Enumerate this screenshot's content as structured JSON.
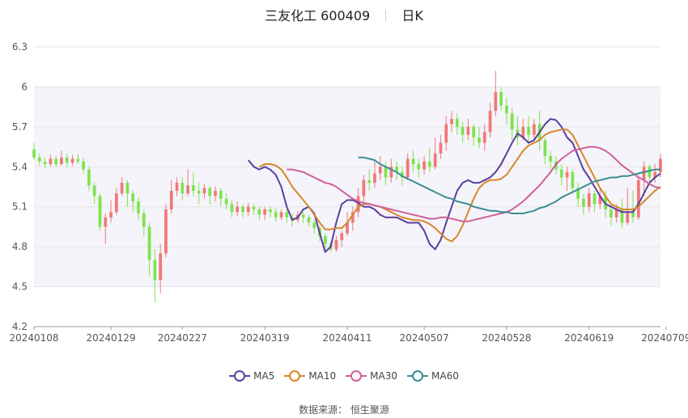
{
  "title": {
    "name": "三友化工 600409",
    "period": "日K"
  },
  "source": "数据来源：  恒生聚源",
  "chart_data": {
    "type": "candlestick",
    "ylim": [
      4.2,
      6.3
    ],
    "y_ticks": [
      4.2,
      4.5,
      4.8,
      5.1,
      5.4,
      5.7,
      6.0,
      6.3
    ],
    "y_tick_labels": [
      "4.2",
      "4.5",
      "4.8",
      "5.1",
      "5.4",
      "5.7",
      "6",
      "6.3"
    ],
    "x_ticks": [
      {
        "label": "20240108",
        "index": 0
      },
      {
        "label": "20240129",
        "index": 14
      },
      {
        "label": "20240227",
        "index": 27
      },
      {
        "label": "20240319",
        "index": 42
      },
      {
        "label": "20240411",
        "index": 57
      },
      {
        "label": "20240507",
        "index": 71
      },
      {
        "label": "20240528",
        "index": 86
      },
      {
        "label": "20240619",
        "index": 101
      },
      {
        "label": "20240709",
        "index": 115
      }
    ],
    "grid": true,
    "legend_position": "bottom",
    "colors": {
      "up": "#f07878",
      "down": "#7ee34e",
      "plot_band": "#f4f4fa"
    },
    "series": [
      {
        "name": "MA5",
        "color": "#5a3f9b",
        "values": [
          5.45,
          5.4,
          5.38,
          5.4,
          5.38,
          5.34,
          5.25,
          5.1,
          5.0,
          5.02,
          5.08,
          5.1,
          5.05,
          4.9,
          4.76,
          4.8,
          4.98,
          5.12,
          5.15,
          5.15,
          5.13,
          5.1,
          5.1,
          5.08,
          5.04,
          5.02,
          5.02,
          5.02,
          5.0,
          4.98,
          4.98,
          4.98,
          4.92,
          4.82,
          4.78,
          4.85,
          4.98,
          5.1,
          5.22,
          5.28,
          5.3,
          5.28,
          5.28,
          5.3,
          5.32,
          5.36,
          5.42,
          5.5,
          5.58,
          5.65,
          5.62,
          5.58,
          5.6,
          5.66,
          5.72,
          5.76,
          5.75,
          5.7,
          5.62,
          5.58,
          5.48,
          5.38,
          5.32,
          5.25,
          5.18,
          5.12,
          5.1,
          5.08,
          5.06,
          5.06,
          5.06,
          5.12,
          5.2,
          5.28,
          5.32,
          5.35
        ]
      },
      {
        "name": "MA10",
        "color": "#d9862a",
        "values": [
          5.4,
          5.42,
          5.42,
          5.41,
          5.38,
          5.32,
          5.25,
          5.2,
          5.15,
          5.1,
          5.04,
          4.98,
          4.93,
          4.93,
          4.94,
          4.94,
          4.98,
          5.04,
          5.1,
          5.12,
          5.12,
          5.11,
          5.1,
          5.08,
          5.06,
          5.04,
          5.02,
          5.01,
          5.0,
          5.0,
          4.99,
          4.97,
          4.94,
          4.9,
          4.86,
          4.84,
          4.88,
          4.96,
          5.06,
          5.16,
          5.24,
          5.28,
          5.3,
          5.3,
          5.31,
          5.34,
          5.4,
          5.46,
          5.52,
          5.56,
          5.58,
          5.6,
          5.64,
          5.66,
          5.67,
          5.68,
          5.68,
          5.64,
          5.56,
          5.48,
          5.4,
          5.32,
          5.24,
          5.18,
          5.12,
          5.1,
          5.08,
          5.08,
          5.08,
          5.1,
          5.14,
          5.18,
          5.22,
          5.25
        ]
      },
      {
        "name": "MA30",
        "color": "#d0609a",
        "values": [
          5.38,
          5.38,
          5.37,
          5.36,
          5.34,
          5.32,
          5.3,
          5.28,
          5.27,
          5.25,
          5.22,
          5.19,
          5.16,
          5.14,
          5.13,
          5.12,
          5.11,
          5.1,
          5.09,
          5.08,
          5.07,
          5.06,
          5.05,
          5.04,
          5.03,
          5.02,
          5.01,
          5.01,
          5.02,
          5.02,
          5.01,
          5.0,
          4.99,
          4.99,
          5.0,
          5.01,
          5.02,
          5.03,
          5.04,
          5.05,
          5.06,
          5.08,
          5.11,
          5.14,
          5.18,
          5.22,
          5.26,
          5.31,
          5.36,
          5.42,
          5.46,
          5.49,
          5.52,
          5.53,
          5.54,
          5.55,
          5.55,
          5.54,
          5.52,
          5.49,
          5.45,
          5.41,
          5.38,
          5.35,
          5.32,
          5.3,
          5.27,
          5.25,
          5.24
        ]
      },
      {
        "name": "MA60",
        "color": "#3a8d92",
        "values": [
          5.47,
          5.47,
          5.46,
          5.45,
          5.42,
          5.4,
          5.38,
          5.36,
          5.33,
          5.31,
          5.29,
          5.27,
          5.25,
          5.23,
          5.21,
          5.19,
          5.17,
          5.16,
          5.14,
          5.13,
          5.12,
          5.1,
          5.09,
          5.08,
          5.07,
          5.07,
          5.06,
          5.06,
          5.05,
          5.05,
          5.05,
          5.06,
          5.07,
          5.09,
          5.1,
          5.12,
          5.14,
          5.17,
          5.19,
          5.21,
          5.23,
          5.25,
          5.27,
          5.29,
          5.3,
          5.31,
          5.32,
          5.32,
          5.33,
          5.33,
          5.34,
          5.35,
          5.36,
          5.37,
          5.38,
          5.38
        ]
      }
    ],
    "candles": [
      [
        5.53,
        5.47,
        5.58,
        5.45
      ],
      [
        5.47,
        5.44,
        5.5,
        5.41
      ],
      [
        5.44,
        5.42,
        5.47,
        5.39
      ],
      [
        5.42,
        5.46,
        5.49,
        5.4
      ],
      [
        5.46,
        5.42,
        5.48,
        5.4
      ],
      [
        5.42,
        5.47,
        5.52,
        5.41
      ],
      [
        5.47,
        5.43,
        5.5,
        5.4
      ],
      [
        5.43,
        5.46,
        5.49,
        5.41
      ],
      [
        5.46,
        5.44,
        5.5,
        5.42
      ],
      [
        5.44,
        5.38,
        5.47,
        5.35
      ],
      [
        5.38,
        5.26,
        5.4,
        5.22
      ],
      [
        5.26,
        5.18,
        5.28,
        5.12
      ],
      [
        5.18,
        4.95,
        5.2,
        4.92
      ],
      [
        4.95,
        5.02,
        5.05,
        4.82
      ],
      [
        5.02,
        5.06,
        5.15,
        4.98
      ],
      [
        5.06,
        5.2,
        5.24,
        5.04
      ],
      [
        5.2,
        5.28,
        5.32,
        5.18
      ],
      [
        5.28,
        5.2,
        5.3,
        5.1
      ],
      [
        5.2,
        5.14,
        5.22,
        5.06
      ],
      [
        5.14,
        5.05,
        5.17,
        5.0
      ],
      [
        5.05,
        4.95,
        5.08,
        4.88
      ],
      [
        4.95,
        4.7,
        4.98,
        4.58
      ],
      [
        4.7,
        4.55,
        4.78,
        4.38
      ],
      [
        4.55,
        4.75,
        4.82,
        4.45
      ],
      [
        4.75,
        5.08,
        5.12,
        4.72
      ],
      [
        5.08,
        5.22,
        5.3,
        5.05
      ],
      [
        5.22,
        5.28,
        5.32,
        5.18
      ],
      [
        5.28,
        5.2,
        5.32,
        5.15
      ],
      [
        5.2,
        5.26,
        5.38,
        5.18
      ],
      [
        5.26,
        5.22,
        5.36,
        5.18
      ],
      [
        5.22,
        5.2,
        5.28,
        5.12
      ],
      [
        5.2,
        5.24,
        5.27,
        5.16
      ],
      [
        5.24,
        5.18,
        5.26,
        5.12
      ],
      [
        5.18,
        5.22,
        5.25,
        5.14
      ],
      [
        5.22,
        5.16,
        5.24,
        5.1
      ],
      [
        5.16,
        5.12,
        5.2,
        5.08
      ],
      [
        5.12,
        5.06,
        5.15,
        5.02
      ],
      [
        5.06,
        5.1,
        5.14,
        5.03
      ],
      [
        5.1,
        5.06,
        5.12,
        5.02
      ],
      [
        5.06,
        5.1,
        5.13,
        5.03
      ],
      [
        5.1,
        5.08,
        5.12,
        5.04
      ],
      [
        5.08,
        5.04,
        5.1,
        5.0
      ],
      [
        5.04,
        5.08,
        5.1,
        5.0
      ],
      [
        5.08,
        5.06,
        5.1,
        5.02
      ],
      [
        5.06,
        5.02,
        5.09,
        4.99
      ],
      [
        5.02,
        5.06,
        5.08,
        5.0
      ],
      [
        5.06,
        5.02,
        5.08,
        4.98
      ],
      [
        5.02,
        5.0,
        5.05,
        4.95
      ],
      [
        5.0,
        5.04,
        5.07,
        4.98
      ],
      [
        5.04,
        5.02,
        5.06,
        4.98
      ],
      [
        5.02,
        4.98,
        5.04,
        4.95
      ],
      [
        4.98,
        4.94,
        5.0,
        4.9
      ],
      [
        4.94,
        4.88,
        4.96,
        4.84
      ],
      [
        4.88,
        4.82,
        4.9,
        4.78
      ],
      [
        4.82,
        4.78,
        4.84,
        4.76
      ],
      [
        4.78,
        4.85,
        4.88,
        4.76
      ],
      [
        4.85,
        4.9,
        4.92,
        4.8
      ],
      [
        4.9,
        4.98,
        5.06,
        4.88
      ],
      [
        4.98,
        5.06,
        5.1,
        4.92
      ],
      [
        5.06,
        5.18,
        5.24,
        5.02
      ],
      [
        5.18,
        5.3,
        5.34,
        5.14
      ],
      [
        5.3,
        5.28,
        5.38,
        5.22
      ],
      [
        5.28,
        5.35,
        5.44,
        5.24
      ],
      [
        5.35,
        5.4,
        5.48,
        5.3
      ],
      [
        5.4,
        5.32,
        5.44,
        5.26
      ],
      [
        5.32,
        5.4,
        5.46,
        5.28
      ],
      [
        5.4,
        5.36,
        5.44,
        5.3
      ],
      [
        5.36,
        5.32,
        5.4,
        5.26
      ],
      [
        5.32,
        5.46,
        5.5,
        5.3
      ],
      [
        5.46,
        5.42,
        5.52,
        5.36
      ],
      [
        5.42,
        5.38,
        5.46,
        5.32
      ],
      [
        5.38,
        5.44,
        5.48,
        5.34
      ],
      [
        5.44,
        5.4,
        5.54,
        5.36
      ],
      [
        5.4,
        5.5,
        5.62,
        5.38
      ],
      [
        5.5,
        5.58,
        5.64,
        5.46
      ],
      [
        5.58,
        5.72,
        5.78,
        5.52
      ],
      [
        5.72,
        5.76,
        5.82,
        5.66
      ],
      [
        5.76,
        5.7,
        5.8,
        5.64
      ],
      [
        5.7,
        5.64,
        5.74,
        5.58
      ],
      [
        5.64,
        5.7,
        5.76,
        5.6
      ],
      [
        5.7,
        5.62,
        5.72,
        5.56
      ],
      [
        5.62,
        5.58,
        5.7,
        5.54
      ],
      [
        5.58,
        5.66,
        5.72,
        5.52
      ],
      [
        5.66,
        5.82,
        5.88,
        5.62
      ],
      [
        5.82,
        5.96,
        6.12,
        5.78
      ],
      [
        5.96,
        5.86,
        6.0,
        5.82
      ],
      [
        5.86,
        5.8,
        5.92,
        5.72
      ],
      [
        5.8,
        5.68,
        5.84,
        5.6
      ],
      [
        5.68,
        5.62,
        5.78,
        5.56
      ],
      [
        5.62,
        5.7,
        5.76,
        5.6
      ],
      [
        5.7,
        5.64,
        5.78,
        5.58
      ],
      [
        5.64,
        5.72,
        5.76,
        5.6
      ],
      [
        5.72,
        5.6,
        5.82,
        5.52
      ],
      [
        5.6,
        5.48,
        5.62,
        5.42
      ],
      [
        5.48,
        5.44,
        5.52,
        5.38
      ],
      [
        5.44,
        5.38,
        5.48,
        5.34
      ],
      [
        5.38,
        5.32,
        5.42,
        5.26
      ],
      [
        5.32,
        5.36,
        5.4,
        5.22
      ],
      [
        5.36,
        5.24,
        5.38,
        5.2
      ],
      [
        5.24,
        5.16,
        5.28,
        5.1
      ],
      [
        5.16,
        5.1,
        5.2,
        5.04
      ],
      [
        5.1,
        5.2,
        5.24,
        5.06
      ],
      [
        5.2,
        5.12,
        5.22,
        5.06
      ],
      [
        5.12,
        5.18,
        5.24,
        5.08
      ],
      [
        5.18,
        5.08,
        5.22,
        5.02
      ],
      [
        5.08,
        5.02,
        5.12,
        4.96
      ],
      [
        5.02,
        5.08,
        5.12,
        4.98
      ],
      [
        5.08,
        4.98,
        5.16,
        4.94
      ],
      [
        4.98,
        5.06,
        5.24,
        4.96
      ],
      [
        5.06,
        5.02,
        5.22,
        4.98
      ],
      [
        5.02,
        5.3,
        5.34,
        5.0
      ],
      [
        5.3,
        5.4,
        5.44,
        5.18
      ],
      [
        5.4,
        5.32,
        5.42,
        5.26
      ],
      [
        5.32,
        5.36,
        5.42,
        5.28
      ],
      [
        5.36,
        5.46,
        5.5,
        5.32
      ]
    ]
  },
  "legend": [
    {
      "label": "MA5",
      "color": "#5a3f9b"
    },
    {
      "label": "MA10",
      "color": "#d9862a"
    },
    {
      "label": "MA30",
      "color": "#d0609a"
    },
    {
      "label": "MA60",
      "color": "#3a8d92"
    }
  ]
}
